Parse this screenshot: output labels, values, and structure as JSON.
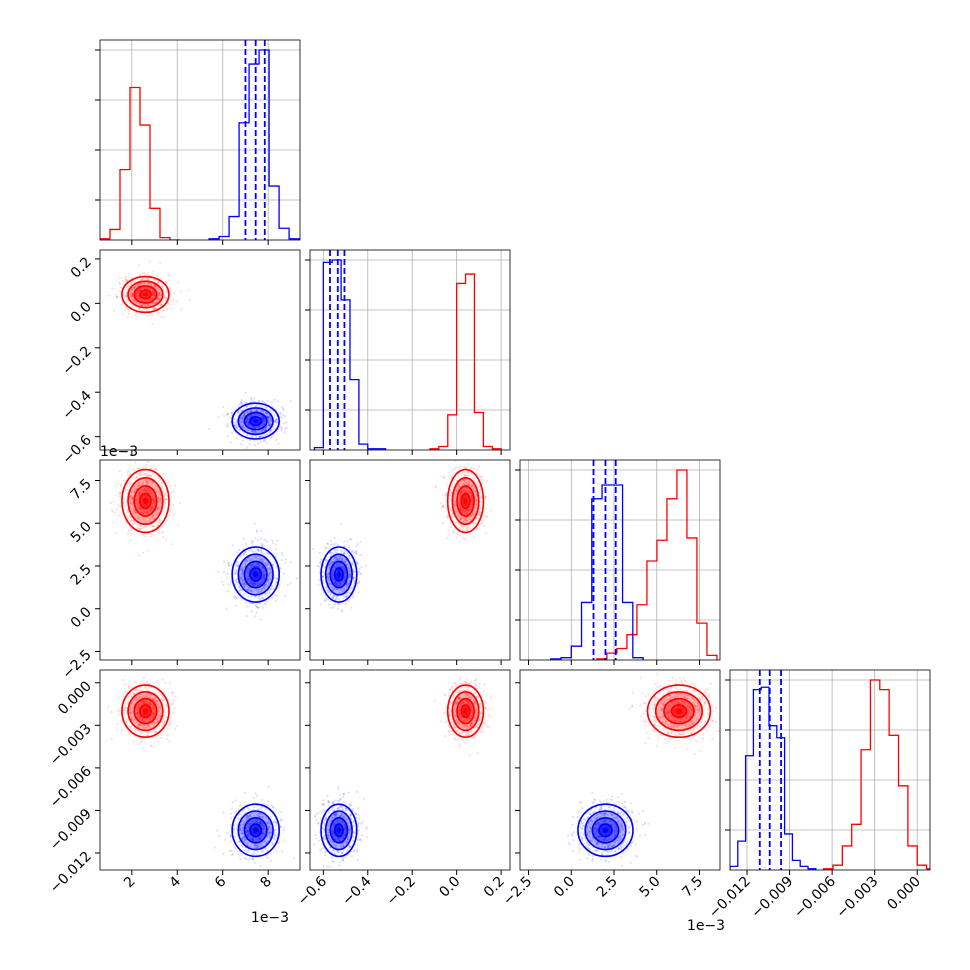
{
  "chart_data": {
    "type": "corner",
    "parameters": [
      {
        "ticks": [
          2,
          4,
          6,
          8
        ],
        "tick_labels": [
          "2",
          "4",
          "6",
          "8"
        ],
        "offset_label": "1e−3",
        "range": [
          0.6,
          9.4
        ]
      },
      {
        "ticks": [
          -0.6,
          -0.4,
          -0.2,
          0.0,
          0.2
        ],
        "tick_labels": [
          "−0.6",
          "−0.4",
          "−0.2",
          "0.0",
          "0.2"
        ],
        "range": [
          -0.66,
          0.24
        ]
      },
      {
        "ticks": [
          -2.5,
          0.0,
          2.5,
          5.0,
          7.5
        ],
        "tick_labels": [
          "−2.5",
          "0.0",
          "2.5",
          "5.0",
          "7.5"
        ],
        "offset_label": "1e−3",
        "range": [
          -3.0,
          8.7
        ]
      },
      {
        "ticks": [
          -0.012,
          -0.009,
          -0.006,
          -0.003,
          0.0
        ],
        "tick_labels": [
          "−0.012",
          "−0.009",
          "−0.006",
          "−0.003",
          "0.000"
        ],
        "range": [
          -0.0132,
          0.0009
        ]
      }
    ],
    "series": [
      {
        "color": "#ff0000",
        "means": [
          2.6,
          0.04,
          6.3,
          -0.002
        ],
        "sds": [
          0.45,
          0.035,
          0.8,
          0.0008
        ],
        "quantiles": [],
        "histograms": [
          {
            "edges": [
              0.6,
              1.04,
              1.48,
              1.92,
              2.36,
              2.8,
              3.24,
              3.68,
              4.12
            ],
            "counts": [
              1,
              9,
              60,
              130,
              98,
              27,
              2,
              0
            ]
          },
          {
            "edges": [
              -0.12,
              -0.08,
              -0.04,
              0.0,
              0.04,
              0.08,
              0.12,
              0.16,
              0.2
            ],
            "counts": [
              1,
              3,
              30,
              142,
              150,
              32,
              3,
              1
            ]
          },
          {
            "edges": [
              1.5,
              2.085,
              2.67,
              3.255,
              3.84,
              4.425,
              5.01,
              5.595,
              6.18,
              6.765,
              7.35,
              7.935,
              8.52
            ],
            "counts": [
              1,
              6,
              10,
              22,
              48,
              86,
              104,
              140,
              165,
              106,
              32,
              4
            ]
          },
          {
            "edges": [
              -0.0066,
              -0.00594,
              -0.00528,
              -0.00462,
              -0.00396,
              -0.0033,
              -0.00264,
              -0.00198,
              -0.00132,
              -0.00066,
              0.0,
              0.00066,
              0.00132
            ],
            "counts": [
              1,
              4,
              20,
              38,
              100,
              158,
              150,
              112,
              70,
              20,
              4,
              1
            ]
          }
        ]
      },
      {
        "color": "#0000ff",
        "means": [
          7.45,
          -0.53,
          2.0,
          -0.0104
        ],
        "sds": [
          0.45,
          0.035,
          0.7,
          0.0008
        ],
        "quantiles": [
          [
            7.0,
            7.45,
            7.85
          ],
          [
            -0.57,
            -0.535,
            -0.505
          ],
          [
            1.3,
            2.0,
            2.6
          ],
          [
            -0.0111,
            -0.0104,
            -0.0096
          ]
        ],
        "histograms": [
          {
            "edges": [
              5.4,
              5.84,
              6.28,
              6.72,
              7.16,
              7.6,
              8.04,
              8.48,
              8.92,
              9.36
            ],
            "counts": [
              1,
              3,
              20,
              100,
              150,
              162,
              46,
              10,
              1
            ]
          },
          {
            "edges": [
              -0.64,
              -0.6,
              -0.56,
              -0.52,
              -0.48,
              -0.44,
              -0.4,
              -0.36,
              -0.32
            ],
            "counts": [
              2,
              160,
              162,
              128,
              60,
              5,
              1,
              1
            ]
          },
          {
            "edges": [
              -1.2,
              -0.6,
              0.0,
              0.6,
              1.2,
              1.8,
              2.4,
              3.0,
              3.6,
              4.2
            ],
            "counts": [
              1,
              2,
              12,
              50,
              140,
              152,
              152,
              50,
              2
            ]
          },
          {
            "edges": [
              -0.0132,
              -0.01265,
              -0.0121,
              -0.01155,
              -0.011,
              -0.01045,
              -0.0099,
              -0.00935,
              -0.0088,
              -0.00825,
              -0.0077,
              -0.00715
            ],
            "counts": [
              3,
              24,
              95,
              150,
              152,
              120,
              110,
              30,
              8,
              3,
              1
            ]
          }
        ]
      }
    ]
  }
}
